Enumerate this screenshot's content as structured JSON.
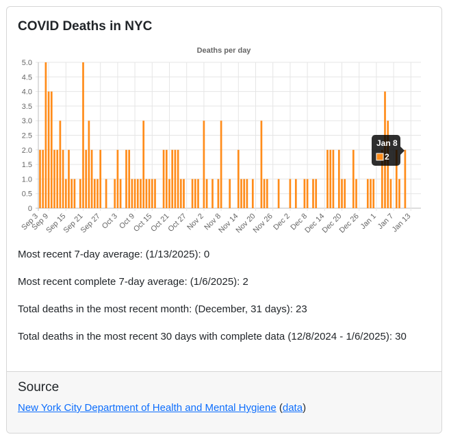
{
  "card": {
    "title": "COVID Deaths in NYC"
  },
  "stats": [
    "Most recent 7-day average: (1/13/2025): 0",
    "Most recent complete 7-day average: (1/6/2025): 2",
    "Total deaths in the most recent month: (December, 31 days): 23",
    "Total deaths in the most recent 30 days with complete data (12/8/2024 - 1/6/2025): 30"
  ],
  "footer": {
    "title": "Source",
    "link_label": "New York City Department of Health and Mental Hygiene",
    "paren_open": "(",
    "data_link_label": "data",
    "paren_close": ")"
  },
  "chart_data": {
    "type": "bar",
    "title": "Deaths per day",
    "xlabel": "",
    "ylabel": "",
    "ylim": [
      0,
      5
    ],
    "y_ticks": [
      "0",
      "0.5",
      "1.0",
      "1.5",
      "2.0",
      "2.5",
      "3.0",
      "3.5",
      "4.0",
      "4.5",
      "5.0"
    ],
    "x_tick_labels": [
      "Sep 3",
      "Sep 9",
      "Sep 15",
      "Sep 21",
      "Sep 27",
      "Oct 3",
      "Oct 9",
      "Oct 15",
      "Oct 21",
      "Oct 27",
      "Nov 2",
      "Nov 8",
      "Nov 14",
      "Nov 20",
      "Nov 26",
      "Dec 2",
      "Dec 8",
      "Dec 14",
      "Dec 20",
      "Dec 26",
      "Jan 1",
      "Jan 7",
      "Jan 13"
    ],
    "start_date": "Sep 3",
    "series": [
      {
        "name": "Deaths",
        "color": "#ff8c1a",
        "values": [
          2,
          2,
          5,
          4,
          4,
          2,
          2,
          3,
          2,
          1,
          2,
          1,
          1,
          0,
          1,
          5,
          2,
          3,
          2,
          1,
          1,
          2,
          0,
          1,
          0,
          0,
          1,
          2,
          1,
          0,
          2,
          2,
          1,
          1,
          1,
          1,
          3,
          1,
          1,
          1,
          1,
          0,
          0,
          2,
          2,
          1,
          2,
          2,
          2,
          1,
          1,
          0,
          0,
          1,
          1,
          1,
          0,
          3,
          1,
          0,
          1,
          0,
          1,
          3,
          0,
          0,
          1,
          0,
          0,
          2,
          1,
          1,
          1,
          0,
          1,
          0,
          0,
          3,
          1,
          1,
          0,
          0,
          0,
          1,
          0,
          0,
          0,
          1,
          0,
          1,
          0,
          0,
          1,
          1,
          0,
          1,
          1,
          0,
          0,
          0,
          2,
          2,
          2,
          0,
          2,
          1,
          1,
          0,
          0,
          2,
          1,
          0,
          0,
          0,
          1,
          1,
          1,
          0,
          0,
          2,
          4,
          3,
          1,
          0,
          2,
          1,
          0,
          2
        ]
      }
    ],
    "tooltip": {
      "label": "Jan 8",
      "value": "2"
    },
    "grid": true,
    "legend": "none"
  }
}
